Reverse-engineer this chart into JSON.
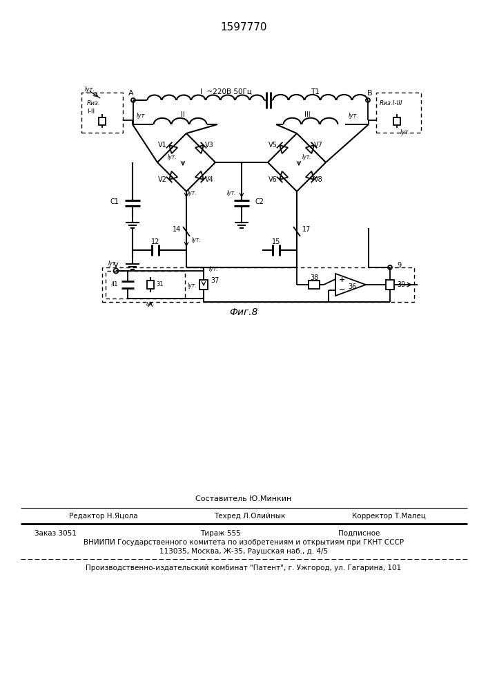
{
  "patent_number": "1597770",
  "fig_label": "Фиг.8",
  "bg_color": "#ffffff",
  "line_color": "#000000",
  "text_color": "#000000",
  "footer": {
    "sestavitel": "Составитель Ю.Минкин",
    "redaktor": "Редактор Н.Яцола",
    "tehred": "Техред Л.Олийнык",
    "korrektor": "Корректор Т.Малец",
    "zakaz": "Заказ 3051",
    "tirazh": "Тираж 555",
    "podpisnoe": "Подписное",
    "vniipи": "ВНИИПИ Государственного комитета по изобретениям и открытиям при ГКНТ СССР",
    "address": "113035, Москва, Ж-35, Раушская наб., д. 4/5",
    "patent_plant": "Производственно-издательский комбинат \"Патент\", г. Ужгород, ул. Гагарина, 101"
  }
}
